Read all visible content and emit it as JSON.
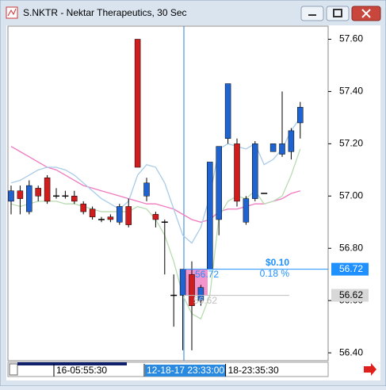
{
  "chart_data": {
    "type": "candlestick",
    "title": "S.NKTR - Nektar Therapeutics, 30 Sec",
    "up_color": "#1e63d0",
    "down_color": "#d01c1c",
    "categories": [
      null,
      null,
      null,
      null,
      null,
      "16-05:55:30",
      null,
      null,
      null,
      null,
      null,
      null,
      null,
      null,
      null,
      "12-18-17 23:33:00",
      null,
      null,
      null,
      null,
      null,
      null,
      null,
      null,
      "18-23:35:30",
      null,
      null,
      null,
      null,
      null,
      null,
      null,
      null
    ],
    "open": [
      56.98,
      57.02,
      56.94,
      57.03,
      57.07,
      57.0,
      57.0,
      57.0,
      56.97,
      56.95,
      56.91,
      56.92,
      56.9,
      56.96,
      57.6,
      57.0,
      56.93,
      56.9,
      56.62,
      56.62,
      56.7,
      56.6,
      56.72,
      56.91,
      57.22,
      57.2,
      56.9,
      56.99,
      57.01,
      57.17,
      57.16,
      57.17,
      57.28
    ],
    "high": [
      57.04,
      57.04,
      57.06,
      57.04,
      57.08,
      57.03,
      57.02,
      57.02,
      56.98,
      56.96,
      56.92,
      56.93,
      56.97,
      56.99,
      57.6,
      57.07,
      56.94,
      56.91,
      56.7,
      56.72,
      56.75,
      56.66,
      57.13,
      57.19,
      57.43,
      57.22,
      57.0,
      57.21,
      57.01,
      57.2,
      57.4,
      57.26,
      57.36
    ],
    "low": [
      56.93,
      56.93,
      56.93,
      56.98,
      56.97,
      56.99,
      56.99,
      56.97,
      56.93,
      56.91,
      56.9,
      56.9,
      56.89,
      56.88,
      57.11,
      56.98,
      56.88,
      56.7,
      56.5,
      56.41,
      56.41,
      56.58,
      56.72,
      56.85,
      57.2,
      56.96,
      56.89,
      56.98,
      57.01,
      57.17,
      57.15,
      57.14,
      57.22
    ],
    "close": [
      57.02,
      56.99,
      57.04,
      57.0,
      56.98,
      57.0,
      57.0,
      56.98,
      56.94,
      56.92,
      56.91,
      56.91,
      56.96,
      56.89,
      57.11,
      57.05,
      56.91,
      56.9,
      56.62,
      56.72,
      56.58,
      56.65,
      57.13,
      57.19,
      57.43,
      56.98,
      56.99,
      57.2,
      57.01,
      57.2,
      57.2,
      57.25,
      57.34
    ],
    "lines": [
      {
        "color": "#f07ac0",
        "values": [
          57.19,
          57.17,
          57.15,
          57.13,
          57.11,
          57.1,
          57.08,
          57.06,
          57.04,
          57.03,
          57.02,
          57.01,
          57.0,
          56.99,
          56.98,
          56.97,
          56.97,
          56.96,
          56.95,
          56.93,
          56.91,
          56.9,
          56.91,
          56.94,
          56.95,
          56.95,
          56.96,
          56.97,
          56.97,
          56.98,
          56.99,
          57.01,
          57.02
        ]
      },
      {
        "color": "#a8cbe8",
        "values": [
          57.05,
          57.06,
          57.08,
          57.1,
          57.11,
          57.11,
          57.1,
          57.08,
          57.05,
          57.02,
          56.99,
          56.97,
          56.95,
          56.98,
          57.08,
          57.12,
          57.11,
          57.05,
          56.95,
          56.85,
          56.82,
          56.88,
          57.0,
          57.18,
          57.2,
          57.19,
          57.18,
          57.2,
          57.12,
          57.14,
          57.18,
          57.25,
          57.3
        ]
      },
      {
        "color": "#b8dbb0",
        "values": [
          56.97,
          56.96,
          56.97,
          56.98,
          56.98,
          56.98,
          56.97,
          56.97,
          56.96,
          56.95,
          56.94,
          56.94,
          56.94,
          56.94,
          56.96,
          56.95,
          56.91,
          56.85,
          56.75,
          56.62,
          56.55,
          56.53,
          56.62,
          56.92,
          56.98,
          57.0,
          56.99,
          57.02,
          56.97,
          56.98,
          57.0,
          57.08,
          57.18
        ]
      }
    ],
    "markers": [
      {
        "value": 56.72,
        "color": "#1e90ff"
      },
      {
        "value": 56.62,
        "color": "#c0c0c0"
      }
    ],
    "change": "$0.10",
    "change_percent": "0.18 %",
    "ylim": [
      56.37,
      57.65
    ],
    "yticks": [
      {
        "value": 56.4,
        "label": "56.40"
      },
      {
        "value": 56.6,
        "label": "56.60"
      },
      {
        "value": 56.8,
        "label": "56.80"
      },
      {
        "value": 57,
        "label": "57.00"
      },
      {
        "value": 57.2,
        "label": "57.20"
      },
      {
        "value": 57.4,
        "label": "57.40"
      },
      {
        "value": 57.6,
        "label": "57.60"
      }
    ]
  }
}
